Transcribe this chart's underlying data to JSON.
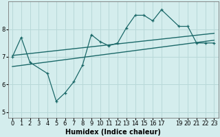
{
  "title": "",
  "xlabel": "Humidex (Indice chaleur)",
  "bg_color": "#d4eded",
  "grid_color": "#b8d8d8",
  "line_color": "#1a6868",
  "xlim": [
    -0.5,
    23.5
  ],
  "ylim": [
    4.8,
    9.0
  ],
  "yticks": [
    5,
    6,
    7,
    8
  ],
  "xticks": [
    0,
    1,
    2,
    3,
    4,
    5,
    6,
    7,
    8,
    9,
    10,
    11,
    12,
    13,
    14,
    15,
    16,
    17,
    19,
    20,
    21,
    22,
    23
  ],
  "series1_x": [
    0,
    1,
    2,
    4,
    5,
    6,
    7,
    8,
    9,
    10,
    11,
    12,
    13,
    14,
    15,
    16,
    17,
    19,
    20,
    21,
    22,
    23
  ],
  "series1_y": [
    7.0,
    7.7,
    6.8,
    6.4,
    5.4,
    5.7,
    6.1,
    6.7,
    7.8,
    7.55,
    7.4,
    7.5,
    8.05,
    8.5,
    8.5,
    8.3,
    8.7,
    8.1,
    8.1,
    7.5,
    7.5,
    7.5
  ],
  "trend1_x": [
    0,
    23
  ],
  "trend1_y": [
    7.05,
    7.85
  ],
  "trend2_x": [
    0,
    23
  ],
  "trend2_y": [
    6.65,
    7.6
  ],
  "xlabel_fontsize": 7,
  "tick_fontsize": 6
}
